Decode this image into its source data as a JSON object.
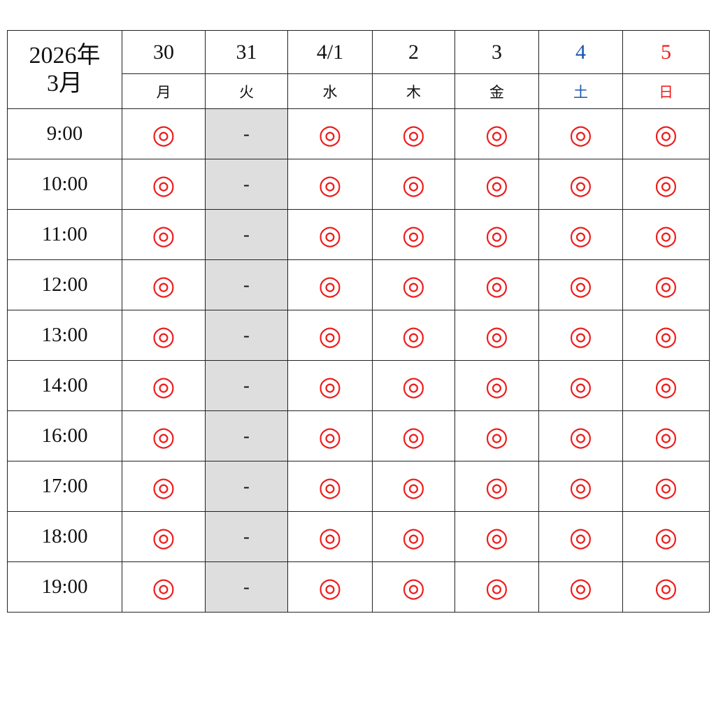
{
  "header": {
    "year_label": "2026年",
    "month_label": "3月",
    "days": [
      {
        "date": "30",
        "weekday": "月",
        "color": "#111111"
      },
      {
        "date": "31",
        "weekday": "火",
        "color": "#111111"
      },
      {
        "date": "4/1",
        "weekday": "水",
        "color": "#111111"
      },
      {
        "date": "2",
        "weekday": "木",
        "color": "#111111"
      },
      {
        "date": "3",
        "weekday": "金",
        "color": "#111111"
      },
      {
        "date": "4",
        "weekday": "土",
        "color": "#1a56b0"
      },
      {
        "date": "5",
        "weekday": "日",
        "color": "#ee1c1c"
      }
    ]
  },
  "legend": {
    "available": "◎",
    "closed": "-"
  },
  "colors": {
    "available_mark": "#ee1c1c",
    "closed_bg": "#dedede",
    "saturday": "#1a56b0",
    "sunday": "#ee1c1c"
  },
  "rows": [
    {
      "time": "9:00",
      "slots": [
        "◎",
        "-",
        "◎",
        "◎",
        "◎",
        "◎",
        "◎"
      ]
    },
    {
      "time": "10:00",
      "slots": [
        "◎",
        "-",
        "◎",
        "◎",
        "◎",
        "◎",
        "◎"
      ]
    },
    {
      "time": "11:00",
      "slots": [
        "◎",
        "-",
        "◎",
        "◎",
        "◎",
        "◎",
        "◎"
      ]
    },
    {
      "time": "12:00",
      "slots": [
        "◎",
        "-",
        "◎",
        "◎",
        "◎",
        "◎",
        "◎"
      ]
    },
    {
      "time": "13:00",
      "slots": [
        "◎",
        "-",
        "◎",
        "◎",
        "◎",
        "◎",
        "◎"
      ]
    },
    {
      "time": "14:00",
      "slots": [
        "◎",
        "-",
        "◎",
        "◎",
        "◎",
        "◎",
        "◎"
      ]
    },
    {
      "time": "16:00",
      "slots": [
        "◎",
        "-",
        "◎",
        "◎",
        "◎",
        "◎",
        "◎"
      ]
    },
    {
      "time": "17:00",
      "slots": [
        "◎",
        "-",
        "◎",
        "◎",
        "◎",
        "◎",
        "◎"
      ]
    },
    {
      "time": "18:00",
      "slots": [
        "◎",
        "-",
        "◎",
        "◎",
        "◎",
        "◎",
        "◎"
      ]
    },
    {
      "time": "19:00",
      "slots": [
        "◎",
        "-",
        "◎",
        "◎",
        "◎",
        "◎",
        "◎"
      ]
    }
  ]
}
